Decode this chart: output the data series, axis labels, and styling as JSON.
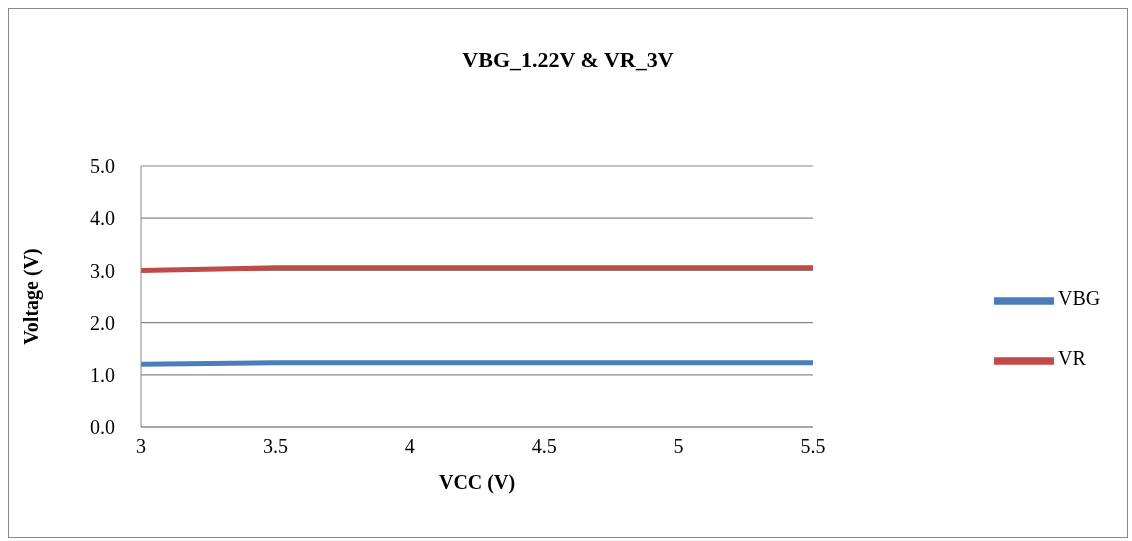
{
  "chart_data": {
    "type": "line",
    "title": "VBG_1.22V & VR_3V",
    "xlabel": "VCC (V)",
    "ylabel": "Voltage (V)",
    "x": [
      3,
      3.5,
      4,
      4.5,
      5,
      5.5
    ],
    "series": [
      {
        "name": "VBG",
        "color": "#4a7ebb",
        "values": [
          1.2,
          1.23,
          1.23,
          1.23,
          1.23,
          1.23
        ]
      },
      {
        "name": "VR",
        "color": "#be4b48",
        "values": [
          3.0,
          3.05,
          3.05,
          3.05,
          3.05,
          3.05
        ]
      }
    ],
    "xlim": [
      3,
      5.5
    ],
    "xticks": [
      3,
      3.5,
      4,
      4.5,
      5,
      5.5
    ],
    "ylim": [
      0,
      5
    ],
    "yticks": [
      {
        "value": 0,
        "label": "0.0"
      },
      {
        "value": 1,
        "label": "1.0"
      },
      {
        "value": 2,
        "label": "2.0"
      },
      {
        "value": 3,
        "label": "3.0"
      },
      {
        "value": 4,
        "label": "4.0"
      },
      {
        "value": 5,
        "label": "5.0"
      }
    ],
    "grid": "y",
    "legend": "right",
    "marker": "none",
    "line_style": "solid"
  }
}
